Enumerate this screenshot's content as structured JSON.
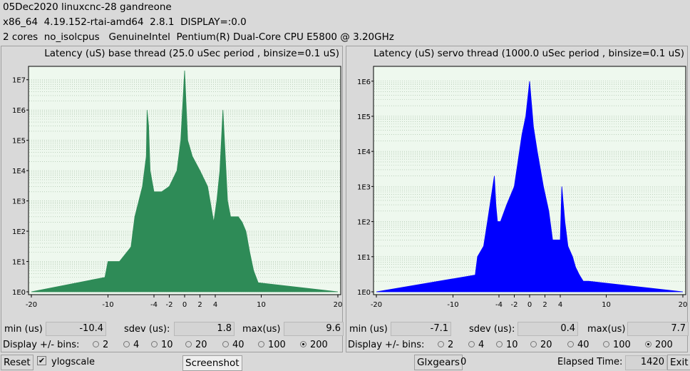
{
  "header": {
    "line1": "05Dec2020 linuxcnc-28 gandreone",
    "line2": "x86_64  4.19.152-rtai-amd64  2.8.1  DISPLAY=:0.0",
    "line3": "2 cores  no_isolcpus   GenuineIntel  Pentium(R) Dual-Core CPU E5800 @ 3.20GHz"
  },
  "panels": [
    {
      "title": "Latency (uS) base thread (25.0 uSec period , binsize=0.1 uS)",
      "min_label": "min (us)",
      "min_value": "-10.4",
      "sdev_label": "sdev (us):",
      "sdev_value": "1.8",
      "max_label": "max(us)",
      "max_value": "9.6",
      "y_ticks": [
        "1E7",
        "1E6",
        "1E5",
        "1E4",
        "1E3",
        "1E2",
        "1E1",
        "1E0"
      ],
      "x_ticks": [
        "-20",
        "-10",
        "-4",
        "-2",
        "0",
        "2",
        "4",
        "10",
        "20"
      ],
      "color": "#2e8b57"
    },
    {
      "title": "Latency (uS) servo thread (1000.0 uSec period , binsize=0.1 uS)",
      "min_label": "min (us)",
      "min_value": "-7.1",
      "sdev_label": "sdev (us):",
      "sdev_value": "0.4",
      "max_label": "max(us)",
      "max_value": "7.7",
      "y_ticks": [
        "1E6",
        "1E5",
        "1E4",
        "1E3",
        "1E2",
        "1E1",
        "1E0"
      ],
      "x_ticks": [
        "-20",
        "-10",
        "-4",
        "-2",
        "0",
        "2",
        "4",
        "10",
        "20"
      ],
      "color": "#0000ff"
    }
  ],
  "bins": {
    "label": "Display +/- bins:",
    "options": [
      "2",
      "4",
      "10",
      "20",
      "40",
      "100",
      "200"
    ],
    "selected": "200"
  },
  "bottom": {
    "reset": "Reset",
    "ylog_label": "ylogscale",
    "ylog_checked": true,
    "screenshot": "Screenshot",
    "glxgears": "Glxgears",
    "glxgears_count": "0",
    "elapsed_label": "Elapsed Time:",
    "elapsed_value": "1420",
    "exit": "Exit"
  },
  "chart_data": [
    {
      "type": "area",
      "title": "Latency (uS) base thread (25.0 uSec period , binsize=0.1 uS)",
      "xlabel": "",
      "ylabel": "",
      "xlim": [
        -20,
        20
      ],
      "ylim": [
        1,
        10000000
      ],
      "yscale": "log",
      "color": "#2e8b57",
      "x": [
        -20,
        -10.4,
        -10,
        -9.5,
        -8.5,
        -7,
        -6.5,
        -5.5,
        -5,
        -4.9,
        -4.7,
        -4.5,
        -4,
        -3,
        -2,
        -1,
        -0.5,
        0,
        0.4,
        1,
        2,
        3,
        3.8,
        4.2,
        4.6,
        5,
        5.2,
        5.6,
        6,
        7,
        7.5,
        8,
        8.5,
        9,
        9.6,
        20
      ],
      "values": [
        1,
        3,
        10,
        10,
        10,
        30,
        300,
        3000,
        30000,
        1000000,
        300000,
        10000,
        2000,
        2000,
        3000,
        10000,
        100000,
        20000000,
        100000,
        30000,
        10000,
        3000,
        200,
        1000,
        10000,
        1000000,
        100000,
        1000,
        300,
        300,
        200,
        100,
        20,
        5,
        2,
        1
      ]
    },
    {
      "type": "area",
      "title": "Latency (uS) servo thread (1000.0 uSec period , binsize=0.1 uS)",
      "xlabel": "",
      "ylabel": "",
      "xlim": [
        -20,
        20
      ],
      "ylim": [
        1,
        1000000
      ],
      "yscale": "log",
      "color": "#0000ff",
      "x": [
        -20,
        -7.1,
        -6.8,
        -6,
        -5.5,
        -4.6,
        -4.4,
        -4.2,
        -3.8,
        -3,
        -2,
        -1,
        -0.5,
        0,
        0.5,
        1,
        1.8,
        2.5,
        3,
        4,
        4.2,
        4.6,
        5,
        5.6,
        6,
        6.5,
        7,
        7.7,
        20
      ],
      "values": [
        1,
        3,
        10,
        20,
        100,
        2000,
        300,
        100,
        100,
        300,
        1000,
        30000,
        100000,
        1000000,
        50000,
        10000,
        1000,
        200,
        30,
        30,
        1000,
        100,
        20,
        10,
        5,
        3,
        2,
        2,
        1
      ]
    }
  ]
}
